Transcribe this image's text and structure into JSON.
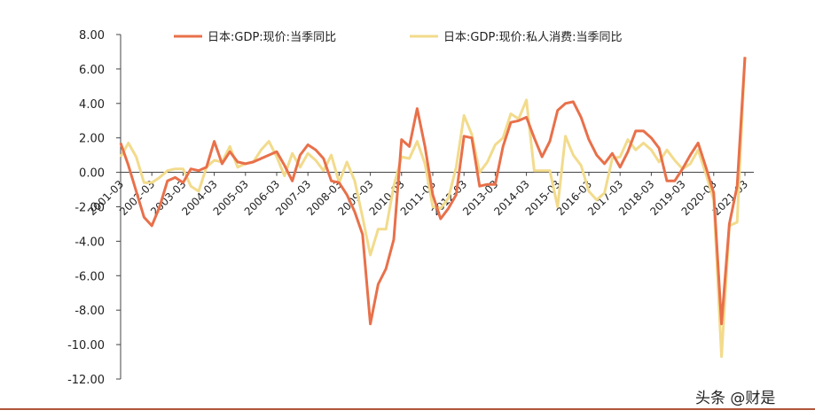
{
  "chart_data": {
    "type": "line",
    "title": "",
    "xlabel": "",
    "ylabel": "",
    "ylim": [
      -12,
      8
    ],
    "ystep": 2,
    "ytick_labels": [
      "8.00",
      "6.00",
      "4.00",
      "2.00",
      "0.00",
      "-2.00",
      "-4.00",
      "-6.00",
      "-8.00",
      "-10.00",
      "-12.00"
    ],
    "grid": false,
    "legend_position": "top-center",
    "start_year": 2001,
    "xtick_labels": [
      "2001-03",
      "2002-03",
      "2003-03",
      "2004-03",
      "2005-03",
      "2006-03",
      "2007-03",
      "2008-03",
      "2009-03",
      "2010-03",
      "2011-03",
      "2012-03",
      "2013-03",
      "2014-03",
      "2015-03",
      "2016-03",
      "2017-03",
      "2018-03",
      "2019-03",
      "2020-03",
      "2021-03"
    ],
    "series": [
      {
        "name": "日本:GDP:现价:当季同比",
        "color": "#E8704A",
        "values": [
          1.7,
          0.4,
          -1.1,
          -2.6,
          -3.1,
          -2.0,
          -0.5,
          -0.3,
          -0.6,
          0.2,
          0.1,
          0.3,
          1.8,
          0.5,
          1.2,
          0.6,
          0.5,
          0.6,
          0.8,
          1.0,
          1.2,
          0.4,
          -0.5,
          1.0,
          1.6,
          1.3,
          0.8,
          -0.5,
          -0.6,
          -1.3,
          -2.3,
          -3.6,
          -8.8,
          -6.5,
          -5.6,
          -3.9,
          1.9,
          1.5,
          3.7,
          1.5,
          -1.3,
          -2.7,
          -2.1,
          -1.3,
          2.1,
          2.0,
          -0.8,
          -0.7,
          -0.7,
          1.5,
          2.9,
          3.0,
          3.2,
          2.0,
          0.9,
          1.8,
          3.6,
          4.0,
          4.1,
          3.2,
          1.9,
          1.0,
          0.5,
          1.1,
          0.3,
          1.2,
          2.4,
          2.4,
          2.0,
          1.4,
          -0.5,
          -0.5,
          0.2,
          1.0,
          1.7,
          0.3,
          -1.2,
          -8.8,
          -3.0,
          -0.8,
          6.7
        ]
      },
      {
        "name": "日本:GDP:现价:私人消费:当季同比",
        "color": "#F2DB8C",
        "values": [
          0.9,
          1.7,
          0.9,
          -0.6,
          -0.6,
          -0.3,
          0.1,
          0.2,
          0.2,
          -0.8,
          -1.1,
          0.3,
          0.7,
          0.6,
          1.5,
          0.3,
          0.5,
          0.6,
          1.3,
          1.8,
          0.9,
          -0.2,
          1.1,
          0.3,
          1.1,
          0.7,
          0.1,
          1.0,
          -0.6,
          0.6,
          -0.5,
          -2.6,
          -4.8,
          -3.3,
          -3.3,
          -0.8,
          0.9,
          0.8,
          1.8,
          0.5,
          -2.0,
          -2.1,
          -1.5,
          0.3,
          3.3,
          2.2,
          0.0,
          0.6,
          1.6,
          2.0,
          3.4,
          3.1,
          4.2,
          0.1,
          0.1,
          0.1,
          -2.0,
          2.1,
          1.0,
          0.4,
          -1.1,
          -1.6,
          -1.2,
          0.8,
          0.9,
          1.9,
          1.3,
          1.7,
          1.3,
          0.6,
          1.3,
          0.7,
          0.2,
          0.5,
          1.3,
          -0.1,
          -1.6,
          -10.7,
          -3.1,
          -2.9,
          6.7
        ]
      }
    ]
  },
  "watermark": "头条 @财是"
}
